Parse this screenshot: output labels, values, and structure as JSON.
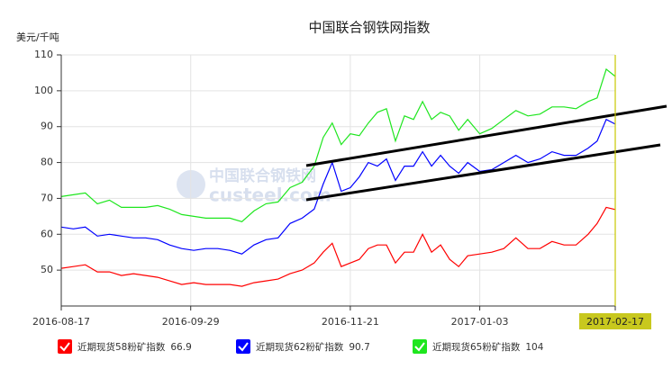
{
  "chart_data": {
    "type": "line",
    "title": "中国联合钢铁网指数",
    "y_label": "美元/千吨",
    "watermark": [
      "中国联合钢铁网",
      "custeel.com"
    ],
    "x": [
      "2016-08-17",
      "2016-08-21",
      "2016-08-25",
      "2016-08-29",
      "2016-09-02",
      "2016-09-06",
      "2016-09-10",
      "2016-09-14",
      "2016-09-18",
      "2016-09-22",
      "2016-09-26",
      "2016-09-30",
      "2016-10-04",
      "2016-10-08",
      "2016-10-12",
      "2016-10-16",
      "2016-10-20",
      "2016-10-24",
      "2016-10-28",
      "2016-11-01",
      "2016-11-05",
      "2016-11-09",
      "2016-11-12",
      "2016-11-15",
      "2016-11-18",
      "2016-11-21",
      "2016-11-24",
      "2016-11-27",
      "2016-11-30",
      "2016-12-03",
      "2016-12-06",
      "2016-12-09",
      "2016-12-12",
      "2016-12-15",
      "2016-12-18",
      "2016-12-21",
      "2016-12-24",
      "2016-12-27",
      "2016-12-30",
      "2017-01-03",
      "2017-01-07",
      "2017-01-11",
      "2017-01-15",
      "2017-01-19",
      "2017-01-23",
      "2017-01-27",
      "2017-01-31",
      "2017-02-04",
      "2017-02-08",
      "2017-02-11",
      "2017-02-14",
      "2017-02-17"
    ],
    "series": [
      {
        "name": "近期现货58粉矿指数",
        "color": "#ff0000",
        "values": [
          50.5,
          51,
          51.5,
          49.5,
          49.5,
          48.5,
          49,
          48.5,
          48,
          47,
          46,
          46.5,
          46,
          46,
          46,
          45.5,
          46.5,
          47,
          47.5,
          49,
          50,
          52,
          55,
          57.5,
          51,
          52,
          53,
          56,
          57,
          57,
          52,
          55,
          55,
          60,
          55,
          57,
          53,
          51,
          54,
          54.5,
          55,
          56,
          59,
          56,
          56,
          58,
          57,
          57,
          60,
          63,
          67.5,
          66.9
        ]
      },
      {
        "name": "近期现货62粉矿指数",
        "color": "#0000ff",
        "values": [
          62,
          61.5,
          62,
          59.5,
          60,
          59.5,
          59,
          59,
          58.5,
          57,
          56,
          55.5,
          56,
          56,
          55.5,
          54.5,
          57,
          58.5,
          59,
          63,
          64.5,
          67,
          74,
          80,
          72,
          73,
          76,
          80,
          79,
          81,
          75,
          79,
          79,
          83,
          79,
          82,
          79,
          77,
          80,
          77.5,
          78,
          80,
          82,
          80,
          81,
          83,
          82,
          82,
          84,
          86,
          92,
          90.7
        ]
      },
      {
        "name": "近期现货65粉矿指数",
        "color": "#1ee61e",
        "values": [
          70.5,
          71,
          71.5,
          68.5,
          69.5,
          67.5,
          67.5,
          67.5,
          68,
          67,
          65.5,
          65,
          64.5,
          64.5,
          64.5,
          63.5,
          66.5,
          68.5,
          69,
          73,
          74.5,
          79,
          87,
          91,
          85,
          88,
          87.5,
          91,
          94,
          95,
          86,
          93,
          92,
          97,
          92,
          94,
          93,
          89,
          92,
          88,
          89.5,
          92,
          94.5,
          93,
          93.5,
          95.5,
          95.5,
          95,
          97,
          98,
          106,
          104
        ]
      }
    ],
    "xlim": [
      "2016-08-17",
      "2017-02-17"
    ],
    "xticks": [
      "2016-08-17",
      "2016-09-29",
      "2016-11-21",
      "2017-01-03",
      "2017-02-17"
    ],
    "ylim": [
      40,
      110
    ],
    "yticks": [
      50,
      60,
      70,
      80,
      90,
      100,
      110
    ],
    "grid": true
  }
}
